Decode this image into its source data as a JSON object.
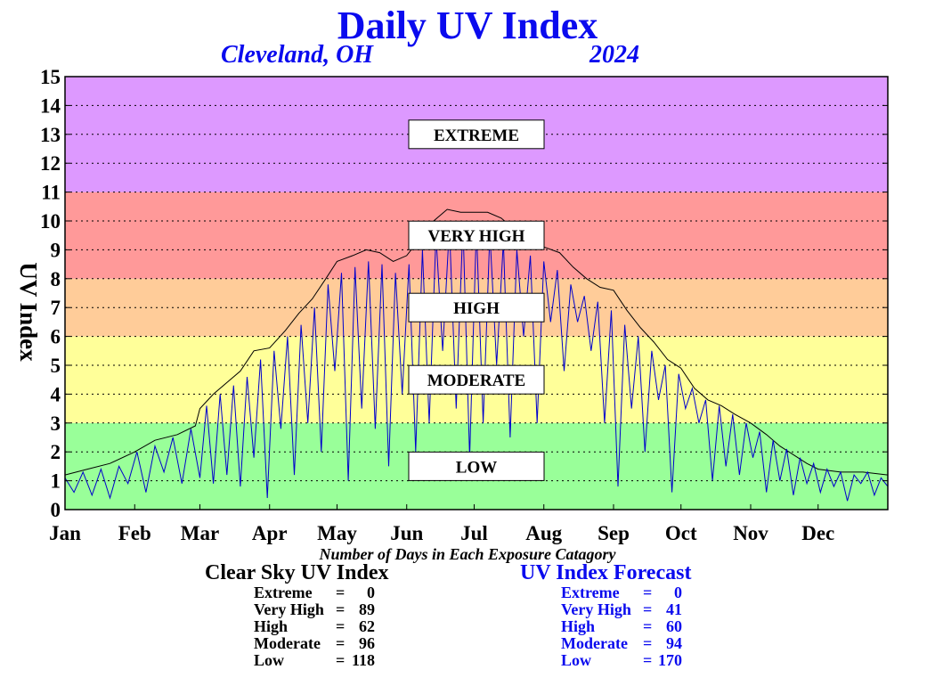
{
  "header": {
    "title": "Daily UV Index",
    "location": "Cleveland, OH",
    "year": "2024"
  },
  "chart_data": {
    "type": "line",
    "ylabel": "UV Index",
    "ylim": [
      0,
      15
    ],
    "yticks": [
      "0",
      "1",
      "2",
      "3",
      "4",
      "5",
      "6",
      "7",
      "8",
      "9",
      "10",
      "11",
      "12",
      "13",
      "14",
      "15"
    ],
    "xlim": [
      0,
      366
    ],
    "months": [
      "Jan",
      "Feb",
      "Mar",
      "Apr",
      "May",
      "Jun",
      "Jul",
      "Aug",
      "Sep",
      "Oct",
      "Nov",
      "Dec"
    ],
    "month_start_days": [
      0,
      31,
      60,
      91,
      121,
      152,
      182,
      213,
      244,
      274,
      305,
      335
    ],
    "grid": "dotted-horizontal",
    "bands": [
      {
        "label": "LOW",
        "from": 0,
        "to": 3,
        "color": "#99ff99"
      },
      {
        "label": "MODERATE",
        "from": 3,
        "to": 6,
        "color": "#ffff99"
      },
      {
        "label": "HIGH",
        "from": 6,
        "to": 8,
        "color": "#ffcc99"
      },
      {
        "label": "VERY HIGH",
        "from": 8,
        "to": 11,
        "color": "#ff9999"
      },
      {
        "label": "EXTREME",
        "from": 11,
        "to": 15,
        "color": "#dd99ff"
      }
    ],
    "series": [
      {
        "name": "Clear Sky UV Index",
        "color": "#000000",
        "points": [
          [
            0,
            1.2
          ],
          [
            10,
            1.4
          ],
          [
            20,
            1.6
          ],
          [
            31,
            2.0
          ],
          [
            40,
            2.4
          ],
          [
            50,
            2.6
          ],
          [
            58,
            2.9
          ],
          [
            60,
            3.5
          ],
          [
            66,
            4.0
          ],
          [
            72,
            4.4
          ],
          [
            78,
            4.8
          ],
          [
            84,
            5.5
          ],
          [
            91,
            5.6
          ],
          [
            98,
            6.2
          ],
          [
            104,
            6.8
          ],
          [
            110,
            7.3
          ],
          [
            116,
            8.0
          ],
          [
            121,
            8.6
          ],
          [
            128,
            8.8
          ],
          [
            134,
            9.0
          ],
          [
            140,
            8.9
          ],
          [
            146,
            8.6
          ],
          [
            152,
            8.8
          ],
          [
            158,
            9.4
          ],
          [
            164,
            10.0
          ],
          [
            170,
            10.4
          ],
          [
            176,
            10.3
          ],
          [
            182,
            10.3
          ],
          [
            188,
            10.3
          ],
          [
            194,
            10.1
          ],
          [
            200,
            9.7
          ],
          [
            206,
            9.3
          ],
          [
            213,
            9.1
          ],
          [
            220,
            8.9
          ],
          [
            226,
            8.4
          ],
          [
            232,
            8.0
          ],
          [
            238,
            7.7
          ],
          [
            244,
            7.6
          ],
          [
            250,
            6.9
          ],
          [
            256,
            6.3
          ],
          [
            262,
            5.8
          ],
          [
            268,
            5.2
          ],
          [
            274,
            4.9
          ],
          [
            280,
            4.2
          ],
          [
            286,
            3.8
          ],
          [
            292,
            3.6
          ],
          [
            298,
            3.3
          ],
          [
            305,
            3.0
          ],
          [
            312,
            2.6
          ],
          [
            318,
            2.2
          ],
          [
            324,
            1.9
          ],
          [
            330,
            1.6
          ],
          [
            335,
            1.4
          ],
          [
            345,
            1.3
          ],
          [
            355,
            1.3
          ],
          [
            366,
            1.2
          ]
        ]
      },
      {
        "name": "UV Index Forecast",
        "color": "#0000cc",
        "points": [
          [
            0,
            1.1
          ],
          [
            4,
            0.6
          ],
          [
            8,
            1.3
          ],
          [
            12,
            0.5
          ],
          [
            16,
            1.4
          ],
          [
            20,
            0.4
          ],
          [
            24,
            1.5
          ],
          [
            28,
            0.9
          ],
          [
            32,
            2.0
          ],
          [
            36,
            0.6
          ],
          [
            40,
            2.2
          ],
          [
            44,
            1.3
          ],
          [
            48,
            2.5
          ],
          [
            52,
            0.9
          ],
          [
            56,
            2.8
          ],
          [
            60,
            1.1
          ],
          [
            63,
            3.6
          ],
          [
            66,
            0.9
          ],
          [
            69,
            4.0
          ],
          [
            72,
            1.2
          ],
          [
            75,
            4.3
          ],
          [
            78,
            0.8
          ],
          [
            81,
            4.6
          ],
          [
            84,
            1.8
          ],
          [
            87,
            5.2
          ],
          [
            90,
            0.4
          ],
          [
            93,
            5.5
          ],
          [
            96,
            2.8
          ],
          [
            99,
            6.0
          ],
          [
            102,
            1.2
          ],
          [
            105,
            6.4
          ],
          [
            108,
            3.0
          ],
          [
            111,
            7.0
          ],
          [
            114,
            2.0
          ],
          [
            117,
            7.8
          ],
          [
            120,
            4.8
          ],
          [
            123,
            8.2
          ],
          [
            126,
            1.0
          ],
          [
            129,
            8.4
          ],
          [
            132,
            3.5
          ],
          [
            135,
            8.6
          ],
          [
            138,
            2.8
          ],
          [
            141,
            8.5
          ],
          [
            144,
            1.5
          ],
          [
            147,
            8.2
          ],
          [
            150,
            4.0
          ],
          [
            153,
            8.5
          ],
          [
            156,
            2.0
          ],
          [
            159,
            9.0
          ],
          [
            162,
            3.0
          ],
          [
            165,
            9.5
          ],
          [
            168,
            5.5
          ],
          [
            171,
            9.8
          ],
          [
            174,
            3.5
          ],
          [
            177,
            9.9
          ],
          [
            180,
            1.8
          ],
          [
            183,
            9.8
          ],
          [
            186,
            3.0
          ],
          [
            189,
            9.6
          ],
          [
            192,
            5.0
          ],
          [
            195,
            9.3
          ],
          [
            198,
            2.5
          ],
          [
            201,
            9.0
          ],
          [
            204,
            6.0
          ],
          [
            207,
            8.8
          ],
          [
            210,
            3.0
          ],
          [
            213,
            8.6
          ],
          [
            216,
            6.5
          ],
          [
            219,
            8.3
          ],
          [
            222,
            4.8
          ],
          [
            225,
            7.8
          ],
          [
            228,
            6.5
          ],
          [
            231,
            7.4
          ],
          [
            234,
            5.5
          ],
          [
            237,
            7.2
          ],
          [
            240,
            3.0
          ],
          [
            243,
            6.9
          ],
          [
            246,
            0.8
          ],
          [
            249,
            6.4
          ],
          [
            252,
            3.5
          ],
          [
            255,
            6.0
          ],
          [
            258,
            2.0
          ],
          [
            261,
            5.5
          ],
          [
            264,
            3.8
          ],
          [
            267,
            5.0
          ],
          [
            270,
            0.6
          ],
          [
            273,
            4.7
          ],
          [
            276,
            3.5
          ],
          [
            279,
            4.2
          ],
          [
            282,
            3.0
          ],
          [
            285,
            3.8
          ],
          [
            288,
            1.0
          ],
          [
            291,
            3.6
          ],
          [
            294,
            1.5
          ],
          [
            297,
            3.3
          ],
          [
            300,
            1.2
          ],
          [
            303,
            3.0
          ],
          [
            306,
            1.8
          ],
          [
            309,
            2.7
          ],
          [
            312,
            0.6
          ],
          [
            315,
            2.4
          ],
          [
            318,
            1.0
          ],
          [
            321,
            2.1
          ],
          [
            324,
            0.5
          ],
          [
            327,
            1.8
          ],
          [
            330,
            0.9
          ],
          [
            333,
            1.6
          ],
          [
            336,
            0.6
          ],
          [
            339,
            1.4
          ],
          [
            342,
            0.8
          ],
          [
            345,
            1.3
          ],
          [
            348,
            0.3
          ],
          [
            351,
            1.2
          ],
          [
            354,
            0.9
          ],
          [
            357,
            1.3
          ],
          [
            360,
            0.5
          ],
          [
            363,
            1.1
          ],
          [
            366,
            0.8
          ]
        ]
      }
    ]
  },
  "caption": "Number of Days in Each Exposure Catagory",
  "clear_sky": {
    "title": "Clear Sky UV Index",
    "rows": [
      {
        "name": "Extreme",
        "eq": "=",
        "value": "0"
      },
      {
        "name": "Very High",
        "eq": "=",
        "value": "89"
      },
      {
        "name": "High",
        "eq": "=",
        "value": "62"
      },
      {
        "name": "Moderate",
        "eq": "=",
        "value": "96"
      },
      {
        "name": "Low",
        "eq": "=",
        "value": "118"
      }
    ]
  },
  "forecast": {
    "title": "UV Index Forecast",
    "rows": [
      {
        "name": "Extreme",
        "eq": "=",
        "value": "0"
      },
      {
        "name": "Very High",
        "eq": "=",
        "value": "41"
      },
      {
        "name": "High",
        "eq": "=",
        "value": "60"
      },
      {
        "name": "Moderate",
        "eq": "=",
        "value": "94"
      },
      {
        "name": "Low",
        "eq": "=",
        "value": "170"
      }
    ]
  }
}
